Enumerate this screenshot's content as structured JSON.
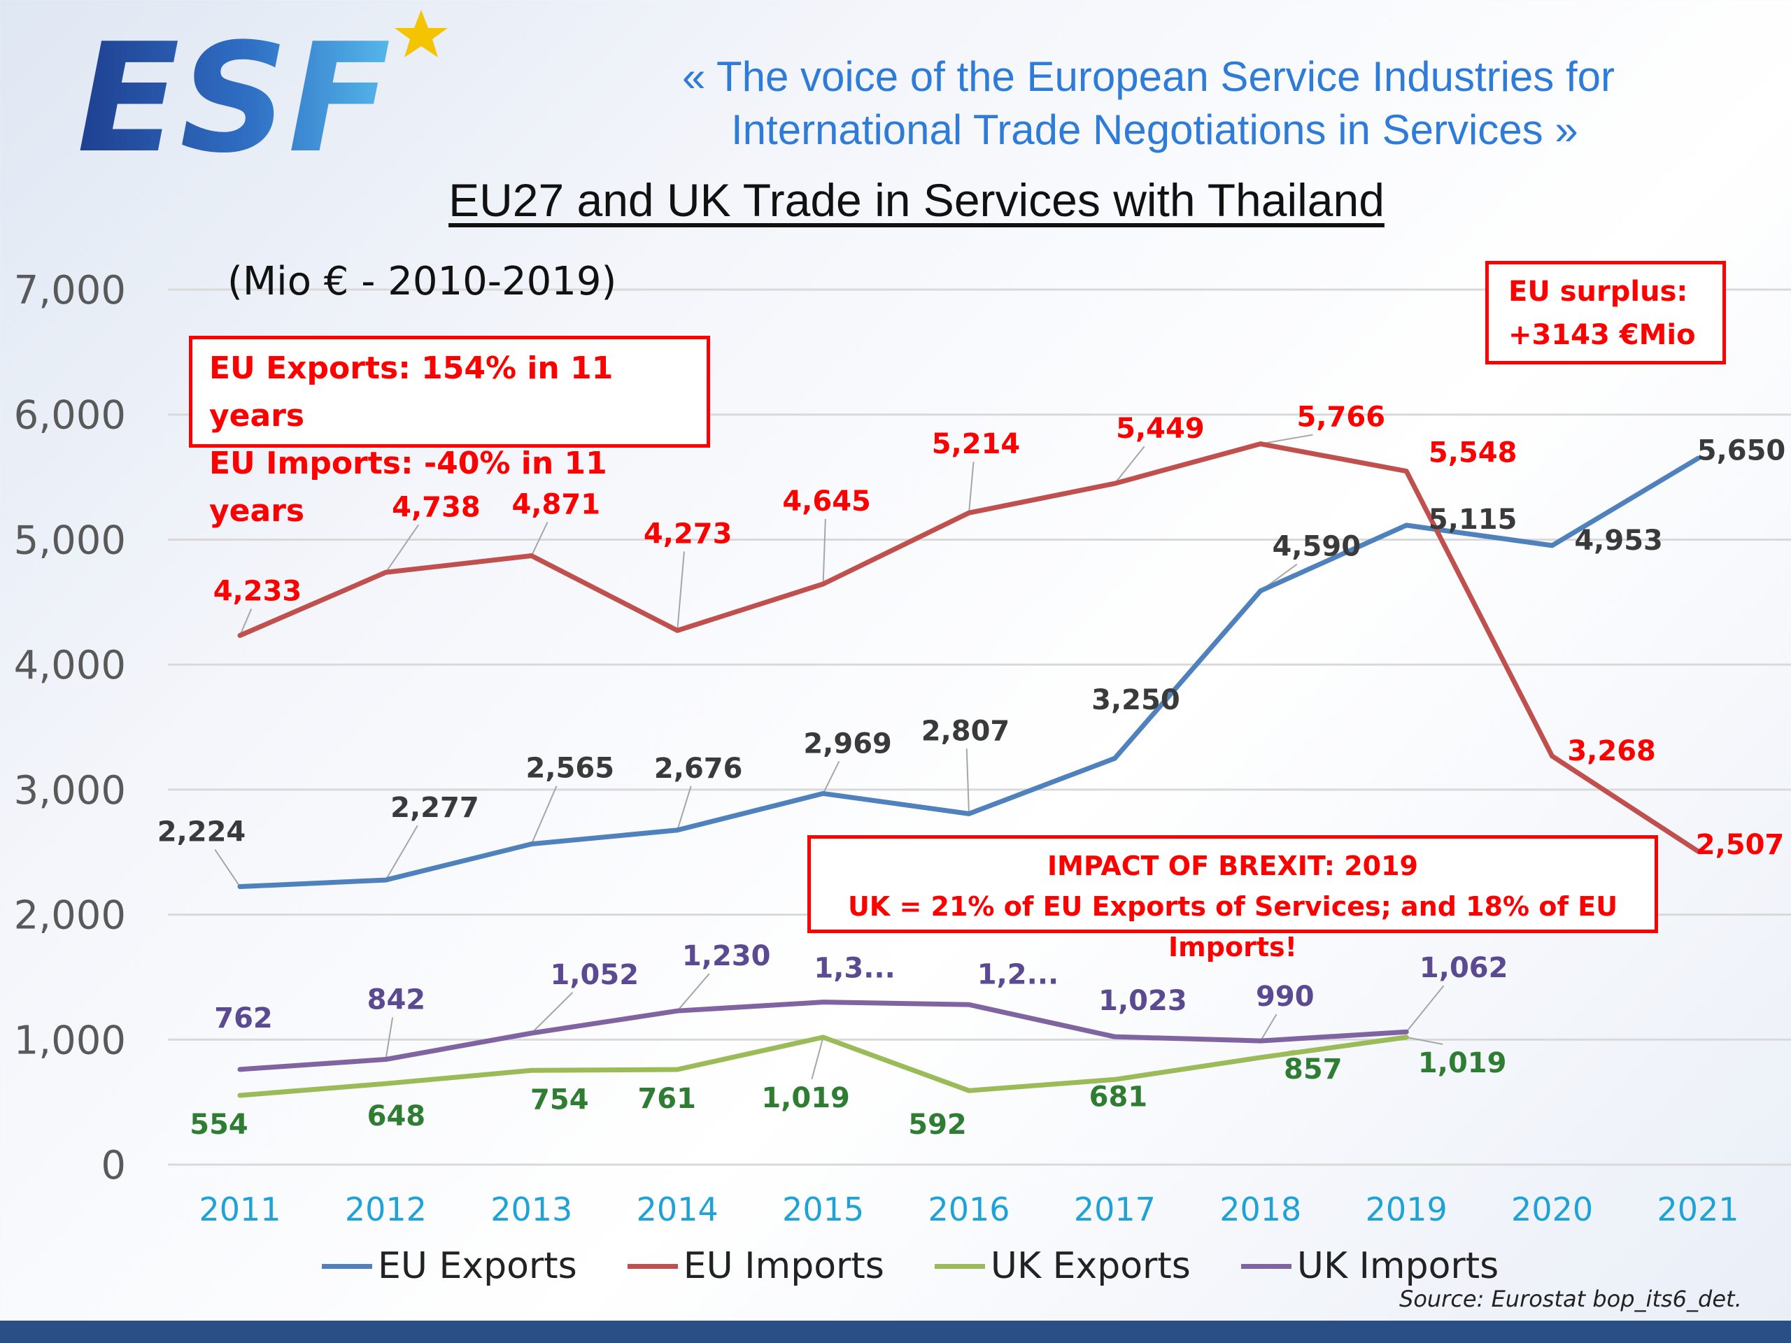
{
  "header": {
    "logo_text": "ESF",
    "tagline_line1": "«  The voice of the European Service Industries for",
    "tagline_line2": "International Trade Negotiations in Services  »"
  },
  "annotations": {
    "growth_line1": "EU Exports: 154% in 11 years",
    "growth_line2": "EU Imports: -40% in 11 years",
    "surplus_line1": "EU surplus:",
    "surplus_line2": "+3143 €Mio",
    "brexit_line1": "IMPACT OF BREXIT: 2019",
    "brexit_line2": "UK = 21% of EU Exports of Services; and 18% of  EU Imports!"
  },
  "source": "Source: Eurostat bop_its6_det.",
  "colors": {
    "eu_exports": "#4f81bd",
    "eu_imports": "#c0504d",
    "uk_exports": "#9bbb59",
    "uk_imports": "#8064a2",
    "year_axis": "#1fa3d6",
    "label_red": "#ff0000",
    "label_dark": "#3a3a3a",
    "label_green": "#2e7d32",
    "label_purple": "#5b4a91"
  },
  "chart_data": {
    "type": "line",
    "title": "EU27 and UK Trade in Services with Thailand",
    "subtitle": "(Mio € - 2010-2019)",
    "categories": [
      "2011",
      "2012",
      "2013",
      "2014",
      "2015",
      "2016",
      "2017",
      "2018",
      "2019",
      "2020",
      "2021"
    ],
    "ylim": [
      0,
      7000
    ],
    "yticks": [
      "0",
      "1,000",
      "2,000",
      "3,000",
      "4,000",
      "5,000",
      "6,000",
      "7,000"
    ],
    "grid": true,
    "legend_position": "bottom",
    "series": [
      {
        "name": "EU Exports",
        "values": [
          2224,
          2277,
          2565,
          2676,
          2969,
          2807,
          3250,
          4590,
          5115,
          4953,
          5650
        ],
        "labels": [
          "2,224",
          "2,277",
          "2,565",
          "2,676",
          "2,969",
          "2,807",
          "3,250",
          "4,590",
          "5,115",
          "4,953",
          "5,650"
        ]
      },
      {
        "name": "EU Imports",
        "values": [
          4233,
          4738,
          4871,
          4273,
          4645,
          5214,
          5449,
          5766,
          5548,
          3268,
          2507
        ],
        "labels": [
          "4,233",
          "4,738",
          "4,871",
          "4,273",
          "4,645",
          "5,214",
          "5,449",
          "5,766",
          "5,548",
          "3,268",
          "2,507"
        ]
      },
      {
        "name": "UK Exports",
        "values": [
          554,
          648,
          754,
          761,
          1019,
          592,
          681,
          857,
          1019,
          null,
          null
        ],
        "labels": [
          "554",
          "648",
          "754",
          "761",
          "1,019",
          "592",
          "681",
          "857",
          "1,019",
          null,
          null
        ]
      },
      {
        "name": "UK Imports",
        "values": [
          762,
          842,
          1052,
          1230,
          1300,
          1280,
          1023,
          990,
          1062,
          null,
          null
        ],
        "labels": [
          "762",
          "842",
          "1,052",
          "1,230",
          "1,3...",
          "1,2...",
          "1,023",
          "990",
          "1,062",
          null,
          null
        ]
      }
    ]
  }
}
